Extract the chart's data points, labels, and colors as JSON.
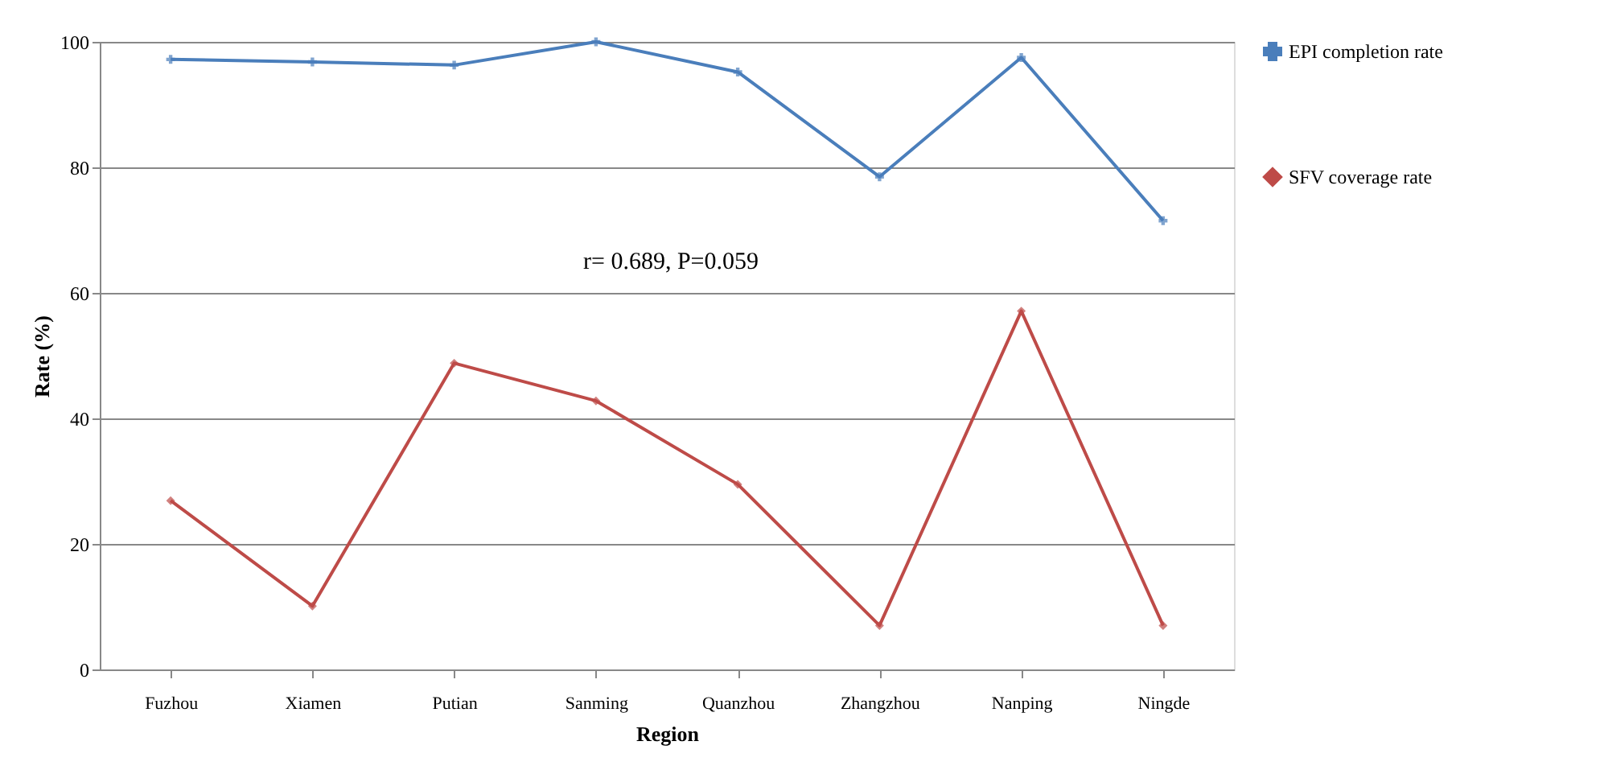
{
  "chart_data": {
    "type": "line",
    "xlabel": "Region",
    "ylabel": "Rate (%)",
    "categories": [
      "Fuzhou",
      "Xiamen",
      "Putian",
      "Sanming",
      "Quanzhou",
      "Zhangzhou",
      "Nanping",
      "Ningde"
    ],
    "series": [
      {
        "name": "EPI completion rate",
        "color": "#4a7ebb",
        "marker": "cross",
        "values": [
          97.2,
          96.8,
          96.3,
          100,
          95.2,
          78.5,
          97.5,
          71.5
        ]
      },
      {
        "name": "SFV coverage rate",
        "color": "#be4b48",
        "marker": "diamond",
        "values": [
          26.9,
          10.1,
          48.8,
          42.8,
          29.5,
          7.0,
          57.1,
          7.0
        ]
      }
    ],
    "ylim": [
      0,
      100
    ],
    "yticks": [
      0,
      20,
      40,
      60,
      80,
      100
    ],
    "grid": "y",
    "legend": "right",
    "annotations": [
      "r= 0.689, P=0.059"
    ]
  }
}
